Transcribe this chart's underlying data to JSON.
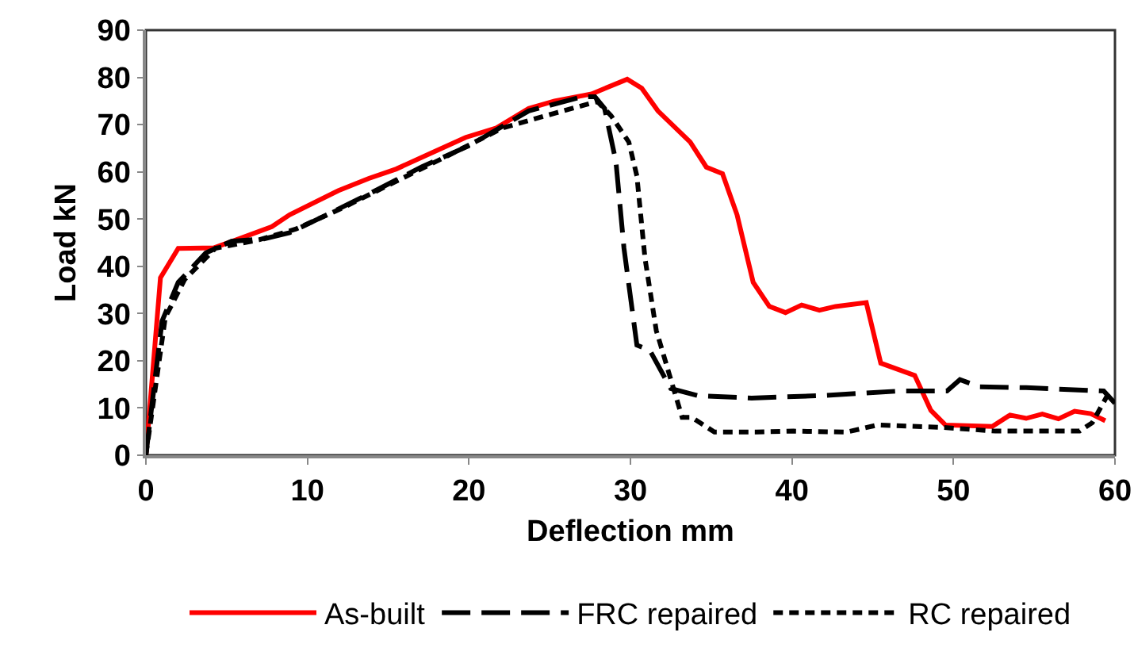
{
  "chart_data": {
    "type": "line",
    "xlabel": "Deflection mm",
    "ylabel": "Load kN",
    "xlim": [
      0,
      60
    ],
    "xticks": [
      0,
      10,
      20,
      30,
      40,
      50,
      60
    ],
    "ylim": [
      0,
      90
    ],
    "yticks": [
      0,
      10,
      20,
      30,
      40,
      50,
      60,
      70,
      80,
      90
    ],
    "grid": false,
    "legend": "bottom",
    "marker": "none",
    "series": [
      {
        "name": "As-built",
        "color": "#ff0000",
        "line_style": "solid",
        "x": [
          0,
          0.9,
          2,
          4.2,
          5.6,
          7.8,
          8.9,
          11.9,
          13.8,
          15.5,
          17.8,
          19.8,
          21.7,
          23.7,
          25.3,
          27.6,
          29.8,
          30.7,
          31.7,
          33.7,
          34.7,
          35.7,
          36.6,
          37.6,
          38.6,
          39.6,
          40.6,
          41.7,
          42.7,
          44.6,
          45.5,
          47.6,
          48.6,
          49.5,
          52.4,
          53.5,
          54.5,
          55.5,
          56.5,
          57.5,
          58.5,
          59.4
        ],
        "values": [
          0,
          37.6,
          43.8,
          43.9,
          45.6,
          48.4,
          50.9,
          56,
          58.6,
          60.6,
          64.2,
          67.3,
          69.3,
          73.4,
          75,
          76.5,
          79.6,
          77.7,
          72.9,
          66.3,
          61,
          59.6,
          50.9,
          36.6,
          31.5,
          30.2,
          31.8,
          30.7,
          31.5,
          32.3,
          19.5,
          16.9,
          9.5,
          6.4,
          6.1,
          8.5,
          7.8,
          8.7,
          7.7,
          9.3,
          8.8,
          7.3
        ]
      },
      {
        "name": "FRC repaired",
        "color": "#000000",
        "line_style": "dashed",
        "x": [
          0,
          1,
          2,
          3.7,
          5.3,
          7.3,
          8.9,
          11.2,
          14.2,
          17.1,
          20.1,
          23.7,
          27,
          27.8,
          28.4,
          29.1,
          29.6,
          30.4,
          31.2,
          32.5,
          34.2,
          37.5,
          41.7,
          46.7,
          49.6,
          50.4,
          51.6,
          54.5,
          56.5,
          59.3,
          60
        ],
        "values": [
          0,
          28.4,
          36.6,
          42.8,
          45.3,
          45.8,
          47.1,
          50.9,
          56,
          61.1,
          65.7,
          72.9,
          75.9,
          75.9,
          73.4,
          62.2,
          43.8,
          23.3,
          22.2,
          14.1,
          12.6,
          12.1,
          12.6,
          13.6,
          13.6,
          16,
          14.5,
          14.3,
          14,
          13.6,
          11
        ]
      },
      {
        "name": "RC repaired",
        "color": "#000000",
        "line_style": "dotted",
        "x": [
          0,
          1.2,
          2.4,
          4.3,
          7,
          9.3,
          12.2,
          15.5,
          18.8,
          22.1,
          25.3,
          27.95,
          28.8,
          29.9,
          30.4,
          30.9,
          31.6,
          32.4,
          33.2,
          33.8,
          35.2,
          37.8,
          40.1,
          43.4,
          45.3,
          49.3,
          52.6,
          57.8,
          58.6,
          59.6
        ],
        "values": [
          0,
          29.2,
          37.2,
          43.8,
          45.6,
          47.9,
          52.4,
          58,
          63.6,
          69.3,
          72.4,
          74.9,
          71.9,
          66.3,
          59.1,
          41.7,
          26.4,
          17.2,
          8,
          8,
          4.9,
          4.9,
          5.1,
          4.9,
          6.4,
          5.9,
          5.1,
          5.1,
          6.9,
          13.1
        ]
      }
    ]
  }
}
